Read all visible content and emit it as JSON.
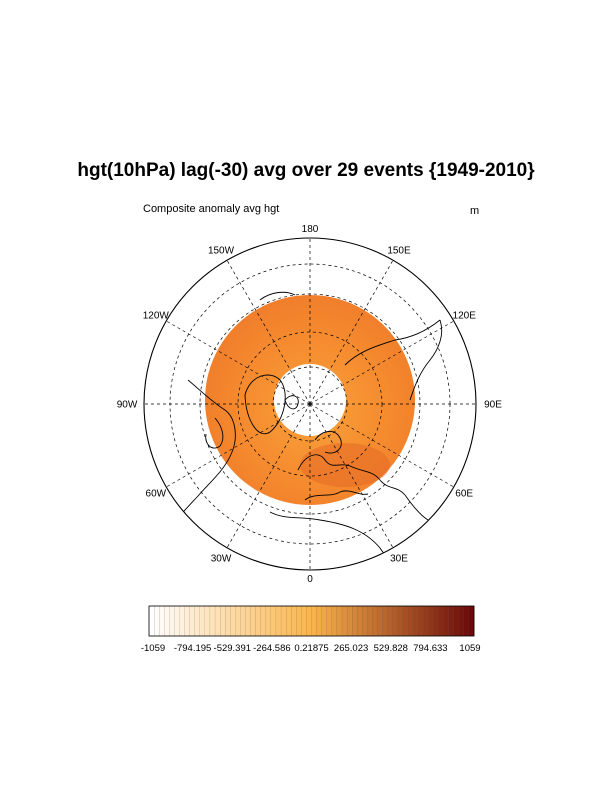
{
  "title": "hgt(10hPa) lag(-30) avg over 29 events {1949-2010}",
  "subtitle": "Composite anomaly avg hgt",
  "units": "m",
  "map": {
    "projection": "north polar stereographic",
    "longitude_labels": [
      {
        "lon": 180,
        "text": "180"
      },
      {
        "lon": 150,
        "text": "150E"
      },
      {
        "lon": 120,
        "text": "120E"
      },
      {
        "lon": 90,
        "text": "90E"
      },
      {
        "lon": 60,
        "text": "60E"
      },
      {
        "lon": 30,
        "text": "30E"
      },
      {
        "lon": 0,
        "text": "0"
      },
      {
        "lon": -30,
        "text": "30W"
      },
      {
        "lon": -60,
        "text": "60W"
      },
      {
        "lon": -90,
        "text": "90W"
      },
      {
        "lon": -120,
        "text": "120W"
      },
      {
        "lon": -150,
        "text": "150W"
      }
    ],
    "field_fill_color": "#f58a2e",
    "field_dark_color": "#e06a26"
  },
  "colorbar": {
    "labels": [
      "-1059",
      "-794.195",
      "-529.391",
      "-264.586",
      "0.21875",
      "265.023",
      "529.828",
      "794.633",
      "1059"
    ],
    "min": -1059,
    "max": 1059,
    "low_color": "#ffffff",
    "mid_color": "#fbb44a",
    "high_color": "#6b0a0a"
  }
}
